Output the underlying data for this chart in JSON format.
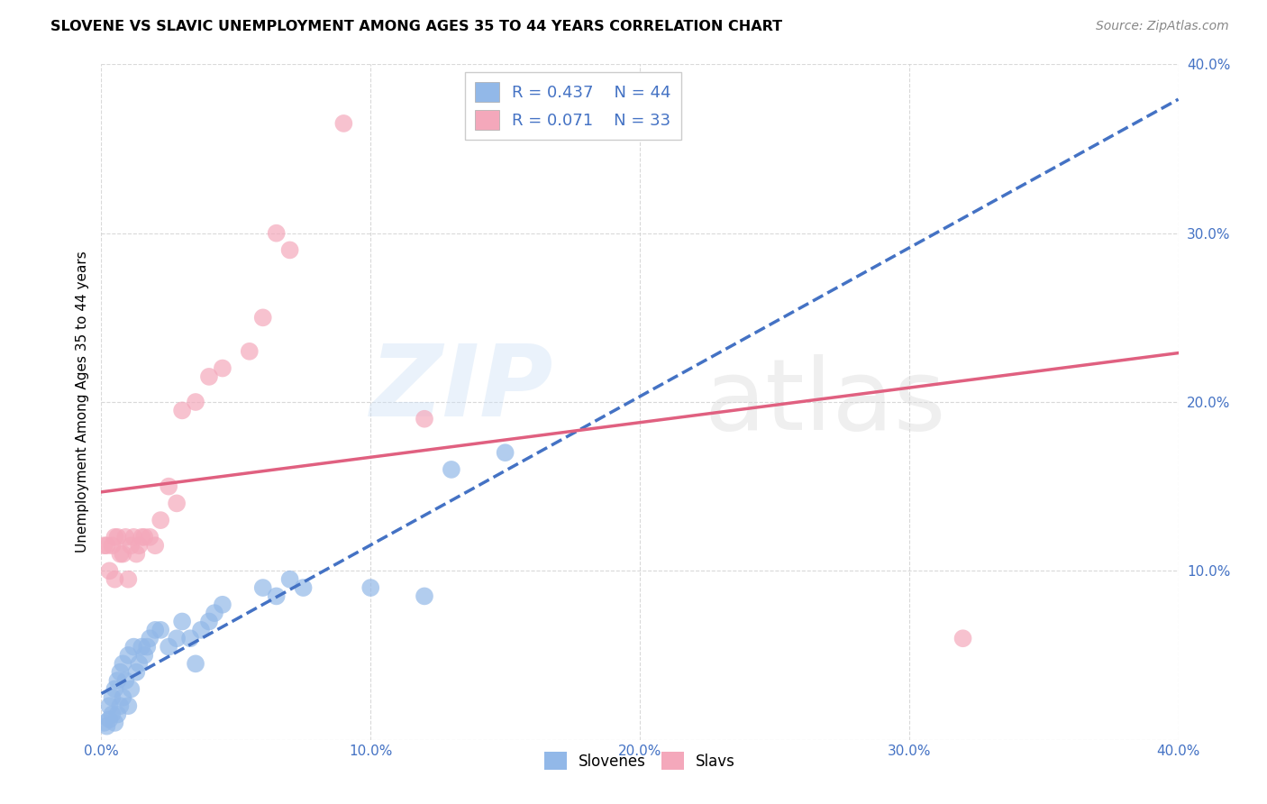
{
  "title": "SLOVENE VS SLAVIC UNEMPLOYMENT AMONG AGES 35 TO 44 YEARS CORRELATION CHART",
  "source": "Source: ZipAtlas.com",
  "ylabel": "Unemployment Among Ages 35 to 44 years",
  "xlim": [
    0.0,
    0.4
  ],
  "ylim": [
    0.0,
    0.4
  ],
  "xticks": [
    0.0,
    0.1,
    0.2,
    0.3,
    0.4
  ],
  "yticks": [
    0.0,
    0.1,
    0.2,
    0.3,
    0.4
  ],
  "xticklabels": [
    "0.0%",
    "10.0%",
    "20.0%",
    "30.0%",
    "40.0%"
  ],
  "yticklabels_right": [
    "",
    "10.0%",
    "20.0%",
    "30.0%",
    "40.0%"
  ],
  "slovene_R": 0.437,
  "slovene_N": 44,
  "slavic_R": 0.071,
  "slavic_N": 33,
  "slovene_color": "#92b8e8",
  "slavic_color": "#f4a8bb",
  "slovene_line_color": "#4472c4",
  "slavic_line_color": "#e06080",
  "background_color": "#ffffff",
  "grid_color": "#d0d0d0",
  "slovene_x": [
    0.001,
    0.002,
    0.003,
    0.003,
    0.004,
    0.004,
    0.005,
    0.005,
    0.006,
    0.006,
    0.007,
    0.007,
    0.008,
    0.008,
    0.009,
    0.01,
    0.01,
    0.011,
    0.012,
    0.013,
    0.014,
    0.015,
    0.016,
    0.017,
    0.018,
    0.02,
    0.022,
    0.025,
    0.028,
    0.03,
    0.033,
    0.035,
    0.037,
    0.04,
    0.042,
    0.045,
    0.06,
    0.065,
    0.07,
    0.075,
    0.1,
    0.12,
    0.13,
    0.15
  ],
  "slovene_y": [
    0.01,
    0.008,
    0.012,
    0.02,
    0.015,
    0.025,
    0.01,
    0.03,
    0.015,
    0.035,
    0.02,
    0.04,
    0.025,
    0.045,
    0.035,
    0.02,
    0.05,
    0.03,
    0.055,
    0.04,
    0.045,
    0.055,
    0.05,
    0.055,
    0.06,
    0.065,
    0.065,
    0.055,
    0.06,
    0.07,
    0.06,
    0.045,
    0.065,
    0.07,
    0.075,
    0.08,
    0.09,
    0.085,
    0.095,
    0.09,
    0.09,
    0.085,
    0.16,
    0.17
  ],
  "slavic_x": [
    0.001,
    0.002,
    0.003,
    0.004,
    0.005,
    0.005,
    0.006,
    0.007,
    0.008,
    0.009,
    0.01,
    0.011,
    0.012,
    0.013,
    0.014,
    0.015,
    0.016,
    0.018,
    0.02,
    0.022,
    0.025,
    0.028,
    0.03,
    0.035,
    0.04,
    0.045,
    0.055,
    0.06,
    0.065,
    0.07,
    0.09,
    0.12,
    0.32
  ],
  "slavic_y": [
    0.115,
    0.115,
    0.1,
    0.115,
    0.095,
    0.12,
    0.12,
    0.11,
    0.11,
    0.12,
    0.095,
    0.115,
    0.12,
    0.11,
    0.115,
    0.12,
    0.12,
    0.12,
    0.115,
    0.13,
    0.15,
    0.14,
    0.195,
    0.2,
    0.215,
    0.22,
    0.23,
    0.25,
    0.3,
    0.29,
    0.365,
    0.19,
    0.06
  ]
}
